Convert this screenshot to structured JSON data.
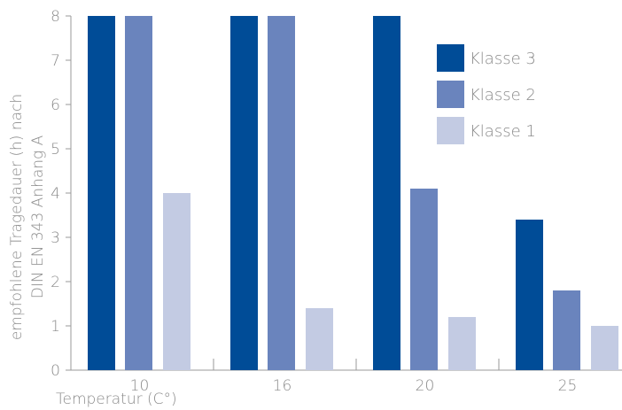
{
  "chart_data": {
    "type": "bar",
    "categories": [
      "10",
      "16",
      "20",
      "25"
    ],
    "series": [
      {
        "name": "Klasse 3",
        "color": "#004c97",
        "values": [
          8,
          8,
          8,
          3.4
        ]
      },
      {
        "name": "Klasse 2",
        "color": "#6a84bd",
        "values": [
          8,
          8,
          4.1,
          1.8
        ]
      },
      {
        "name": "Klasse 1",
        "color": "#c3cbe3",
        "values": [
          4,
          1.4,
          1.2,
          1.0
        ]
      }
    ],
    "xlabel": "Temperatur (C°)",
    "ylabel_lines": [
      "empfohlene Tragedauer (h) nach",
      "DIN EN 343 Anhang A"
    ],
    "ylim": [
      0,
      8
    ],
    "yticks": [
      "0",
      "1",
      "2",
      "3",
      "4",
      "5",
      "6",
      "7",
      "8"
    ],
    "grid": false,
    "legend_position": "top-right"
  }
}
